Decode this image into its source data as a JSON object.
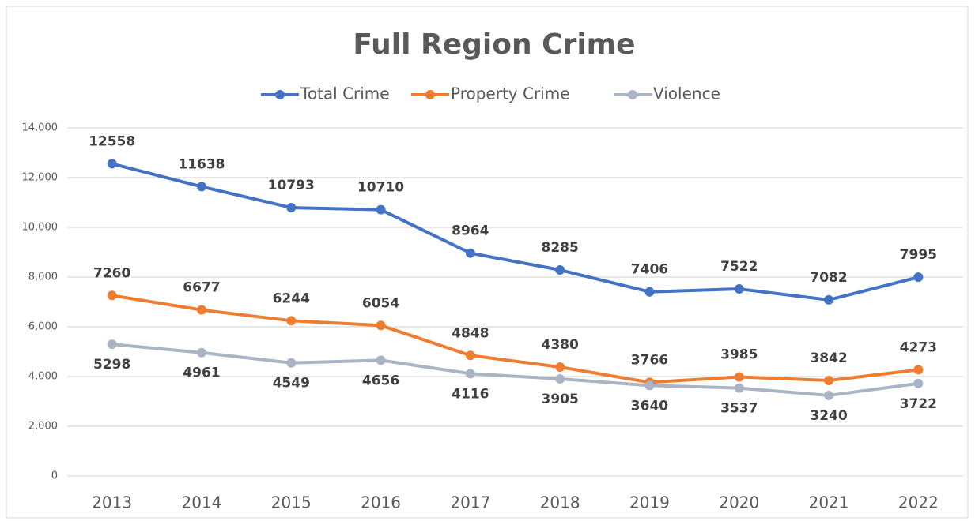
{
  "chart_data": {
    "type": "line",
    "title": "Full Region Crime",
    "categories": [
      "2013",
      "2014",
      "2015",
      "2016",
      "2017",
      "2018",
      "2019",
      "2020",
      "2021",
      "2022"
    ],
    "series": [
      {
        "name": "Total Crime",
        "color": "#4472c4",
        "values": [
          12558,
          11638,
          10793,
          10710,
          8964,
          8285,
          7406,
          7522,
          7082,
          7995
        ]
      },
      {
        "name": "Property Crime",
        "color": "#ed7d31",
        "values": [
          7260,
          6677,
          6244,
          6054,
          4848,
          4380,
          3766,
          3985,
          3842,
          4273
        ]
      },
      {
        "name": "Violence",
        "color": "#aab4c4",
        "values": [
          5298,
          4961,
          4549,
          4656,
          4116,
          3905,
          3640,
          3537,
          3240,
          3722
        ]
      }
    ],
    "ylim": [
      0,
      14000
    ],
    "yticks": [
      0,
      {
        "value": 2000,
        "label": "2,000"
      },
      {
        "value": 4000,
        "label": "4,000"
      },
      {
        "value": 6000,
        "label": "6,000"
      },
      {
        "value": 8000,
        "label": "8,000"
      },
      {
        "value": 10000,
        "label": "10,000"
      },
      {
        "value": 12000,
        "label": "12,000"
      },
      {
        "value": 14000,
        "label": "14,000"
      }
    ],
    "grid": true,
    "legend": "top"
  }
}
